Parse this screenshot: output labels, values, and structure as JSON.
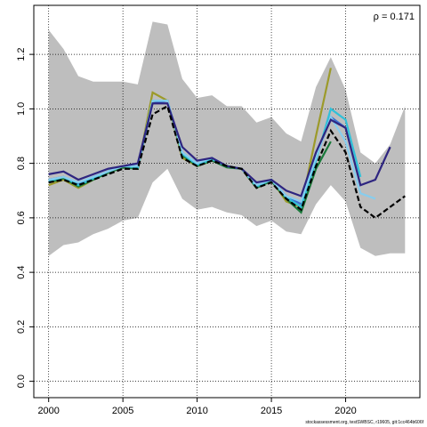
{
  "chart_data": {
    "type": "line",
    "annotation": "ρ = 0.171",
    "footer": "stockassessment.org, testSWBSC, r19605, git:1cc464b606f",
    "x": [
      2000,
      2001,
      2002,
      2003,
      2004,
      2005,
      2006,
      2007,
      2008,
      2009,
      2010,
      2011,
      2012,
      2013,
      2014,
      2015,
      2016,
      2017,
      2018,
      2019,
      2020,
      2021,
      2022,
      2023,
      2024
    ],
    "band": {
      "color": "#bebebe",
      "upper": [
        1.29,
        1.22,
        1.12,
        1.1,
        1.1,
        1.1,
        1.09,
        1.32,
        1.31,
        1.11,
        1.04,
        1.05,
        1.01,
        1.01,
        0.95,
        0.97,
        0.91,
        0.88,
        1.08,
        1.19,
        1.07,
        0.84,
        0.8,
        0.87,
        1.01
      ],
      "lower": [
        0.46,
        0.5,
        0.51,
        0.54,
        0.56,
        0.59,
        0.6,
        0.73,
        0.78,
        0.67,
        0.63,
        0.64,
        0.62,
        0.61,
        0.57,
        0.59,
        0.55,
        0.54,
        0.65,
        0.72,
        0.66,
        0.49,
        0.46,
        0.47,
        0.47
      ]
    },
    "series": [
      {
        "color": "#9c9a2a",
        "dashed": false,
        "values": [
          0.72,
          0.74,
          0.71,
          0.74,
          0.77,
          0.79,
          0.78,
          1.06,
          1.03,
          0.82,
          0.79,
          0.81,
          0.79,
          0.78,
          0.71,
          0.74,
          0.66,
          0.64,
          0.9,
          1.15,
          null,
          null,
          null,
          null,
          null
        ]
      },
      {
        "color": "#1a7a3a",
        "dashed": false,
        "values": [
          0.73,
          0.745,
          0.715,
          0.74,
          0.765,
          0.785,
          0.78,
          1.03,
          1.03,
          0.83,
          0.79,
          0.81,
          0.785,
          0.78,
          0.71,
          0.735,
          0.67,
          0.62,
          0.78,
          0.88,
          null,
          null,
          null,
          null,
          null
        ]
      },
      {
        "color": "#3a6fd0",
        "dashed": false,
        "values": [
          0.74,
          0.75,
          0.725,
          0.75,
          0.77,
          0.79,
          0.79,
          1.02,
          1.03,
          0.84,
          0.8,
          0.815,
          0.79,
          0.78,
          0.72,
          0.74,
          0.68,
          0.65,
          0.82,
          0.97,
          0.93,
          null,
          null,
          null,
          null
        ]
      },
      {
        "color": "#2fc0d8",
        "dashed": false,
        "values": [
          0.735,
          0.75,
          0.72,
          0.745,
          0.77,
          0.79,
          0.785,
          1.03,
          1.03,
          0.835,
          0.795,
          0.815,
          0.79,
          0.78,
          0.715,
          0.74,
          0.675,
          0.64,
          0.81,
          1.0,
          0.96,
          0.75,
          null,
          null,
          null
        ]
      },
      {
        "color": "#87cdee",
        "dashed": false,
        "values": [
          0.74,
          0.75,
          0.73,
          0.75,
          0.77,
          0.79,
          0.79,
          1.03,
          1.03,
          0.84,
          0.8,
          0.82,
          0.79,
          0.78,
          0.72,
          0.74,
          0.68,
          0.66,
          0.82,
          0.97,
          0.88,
          0.69,
          0.67,
          null,
          null
        ]
      },
      {
        "color": "#2e2580",
        "dashed": false,
        "values": [
          0.76,
          0.77,
          0.74,
          0.76,
          0.78,
          0.79,
          0.8,
          1.02,
          1.02,
          0.86,
          0.81,
          0.82,
          0.79,
          0.78,
          0.73,
          0.74,
          0.7,
          0.68,
          0.84,
          0.96,
          0.93,
          0.72,
          0.74,
          0.86,
          null
        ]
      },
      {
        "color": "#000000",
        "dashed": true,
        "values": [
          0.73,
          0.74,
          0.72,
          0.74,
          0.76,
          0.78,
          0.78,
          0.98,
          1.01,
          0.82,
          0.79,
          0.81,
          0.79,
          0.78,
          0.71,
          0.73,
          0.67,
          0.63,
          0.79,
          0.92,
          0.84,
          0.64,
          0.6,
          0.64,
          0.68
        ]
      }
    ],
    "xlim": [
      1999,
      2025
    ],
    "ylim": [
      -0.06,
      1.38
    ],
    "xticks": [
      2000,
      2005,
      2010,
      2015,
      2020
    ],
    "yticks": [
      {
        "value": 0,
        "label": "0.0"
      },
      0.2,
      0.4,
      0.6,
      0.8,
      {
        "value": 1,
        "label": "1.0"
      },
      1.2
    ],
    "grid": true
  }
}
